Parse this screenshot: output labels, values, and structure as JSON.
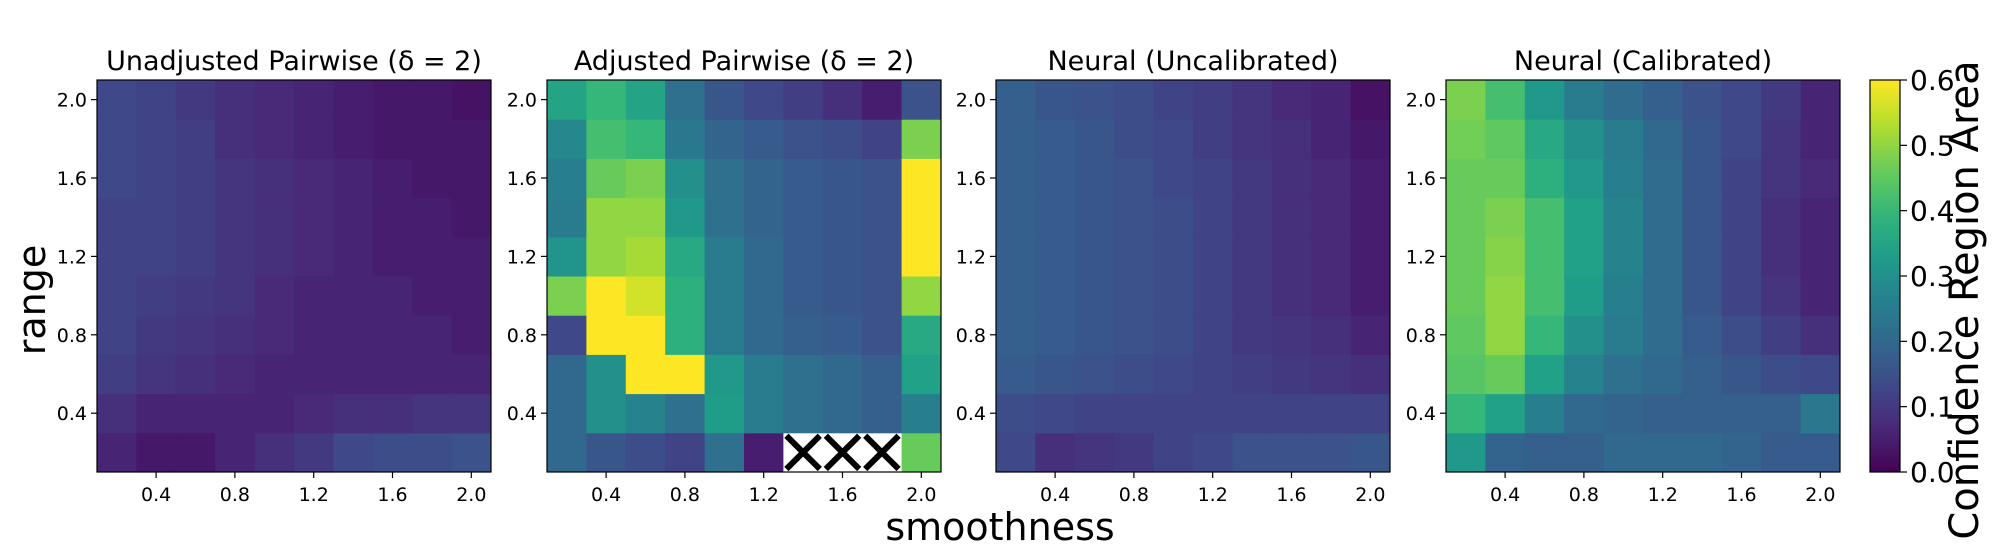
{
  "chart_data": {
    "type": "heatmap",
    "xlabel": "smoothness",
    "ylabel": "range",
    "colormap": "viridis",
    "color_range": [
      0.0,
      0.6
    ],
    "colorbar_label": "Confidence Region Area",
    "colorbar_ticks": [
      "0.0",
      "0.1",
      "0.2",
      "0.3",
      "0.4",
      "0.5",
      "0.6"
    ],
    "x_range": [
      0.1,
      2.1
    ],
    "y_range": [
      0.1,
      2.1
    ],
    "x_ticks": [
      "0.4",
      "0.8",
      "1.2",
      "1.6",
      "2.0"
    ],
    "y_ticks": [
      "0.4",
      "0.8",
      "1.2",
      "1.6",
      "2.0"
    ],
    "grid_x": [
      0.2,
      0.4,
      0.6,
      0.8,
      1.0,
      1.2,
      1.4,
      1.6,
      1.8,
      2.0
    ],
    "grid_y": [
      0.2,
      0.4,
      0.6,
      0.8,
      1.0,
      1.2,
      1.4,
      1.6,
      1.8,
      2.0
    ],
    "missing_marker": "X",
    "panels": [
      {
        "title": "Unadjusted Pairwise (δ = 2)",
        "values": [
          [
            0.06,
            0.04,
            0.04,
            0.06,
            0.08,
            0.1,
            0.13,
            0.14,
            0.14,
            0.15
          ],
          [
            0.08,
            0.06,
            0.06,
            0.06,
            0.06,
            0.07,
            0.08,
            0.08,
            0.09,
            0.09
          ],
          [
            0.11,
            0.09,
            0.08,
            0.07,
            0.06,
            0.06,
            0.06,
            0.06,
            0.06,
            0.06
          ],
          [
            0.12,
            0.1,
            0.09,
            0.08,
            0.07,
            0.06,
            0.06,
            0.06,
            0.06,
            0.05
          ],
          [
            0.12,
            0.11,
            0.1,
            0.09,
            0.07,
            0.06,
            0.06,
            0.06,
            0.05,
            0.05
          ],
          [
            0.12,
            0.12,
            0.11,
            0.09,
            0.08,
            0.07,
            0.06,
            0.05,
            0.05,
            0.05
          ],
          [
            0.12,
            0.12,
            0.11,
            0.09,
            0.08,
            0.07,
            0.06,
            0.05,
            0.05,
            0.04
          ],
          [
            0.13,
            0.12,
            0.11,
            0.09,
            0.08,
            0.07,
            0.06,
            0.05,
            0.04,
            0.04
          ],
          [
            0.13,
            0.12,
            0.11,
            0.08,
            0.07,
            0.06,
            0.05,
            0.04,
            0.04,
            0.04
          ],
          [
            0.13,
            0.12,
            0.1,
            0.08,
            0.07,
            0.06,
            0.05,
            0.04,
            0.04,
            0.03
          ]
        ]
      },
      {
        "title": "Adjusted Pairwise (δ = 2)",
        "values": [
          [
            0.2,
            0.16,
            0.14,
            0.12,
            0.22,
            0.05,
            null,
            null,
            null,
            0.46
          ],
          [
            0.2,
            0.3,
            0.27,
            0.22,
            0.33,
            0.25,
            0.22,
            0.2,
            0.18,
            0.26
          ],
          [
            0.2,
            0.3,
            0.6,
            0.6,
            0.32,
            0.25,
            0.22,
            0.2,
            0.18,
            0.34
          ],
          [
            0.13,
            0.6,
            0.6,
            0.38,
            0.25,
            0.2,
            0.18,
            0.17,
            0.15,
            0.36
          ],
          [
            0.48,
            0.6,
            0.56,
            0.38,
            0.25,
            0.2,
            0.17,
            0.16,
            0.15,
            0.5
          ],
          [
            0.31,
            0.5,
            0.52,
            0.36,
            0.25,
            0.2,
            0.17,
            0.16,
            0.15,
            0.6
          ],
          [
            0.25,
            0.5,
            0.5,
            0.32,
            0.22,
            0.19,
            0.17,
            0.16,
            0.15,
            0.6
          ],
          [
            0.26,
            0.46,
            0.48,
            0.3,
            0.22,
            0.19,
            0.17,
            0.16,
            0.15,
            0.6
          ],
          [
            0.28,
            0.42,
            0.4,
            0.24,
            0.19,
            0.17,
            0.15,
            0.14,
            0.12,
            0.48
          ],
          [
            0.35,
            0.4,
            0.35,
            0.22,
            0.16,
            0.13,
            0.11,
            0.08,
            0.05,
            0.15
          ]
        ]
      },
      {
        "title": "Neural (Uncalibrated)",
        "values": [
          [
            0.13,
            0.08,
            0.09,
            0.1,
            0.12,
            0.13,
            0.15,
            0.15,
            0.15,
            0.16
          ],
          [
            0.14,
            0.13,
            0.12,
            0.12,
            0.12,
            0.12,
            0.12,
            0.12,
            0.12,
            0.12
          ],
          [
            0.17,
            0.16,
            0.15,
            0.14,
            0.13,
            0.12,
            0.11,
            0.1,
            0.09,
            0.08
          ],
          [
            0.18,
            0.17,
            0.16,
            0.15,
            0.14,
            0.12,
            0.1,
            0.09,
            0.08,
            0.06
          ],
          [
            0.18,
            0.17,
            0.16,
            0.15,
            0.14,
            0.12,
            0.1,
            0.08,
            0.07,
            0.05
          ],
          [
            0.18,
            0.17,
            0.16,
            0.15,
            0.14,
            0.12,
            0.1,
            0.08,
            0.07,
            0.05
          ],
          [
            0.18,
            0.17,
            0.16,
            0.15,
            0.14,
            0.12,
            0.1,
            0.08,
            0.07,
            0.05
          ],
          [
            0.18,
            0.17,
            0.16,
            0.15,
            0.13,
            0.12,
            0.1,
            0.08,
            0.07,
            0.05
          ],
          [
            0.18,
            0.17,
            0.16,
            0.14,
            0.13,
            0.11,
            0.09,
            0.08,
            0.06,
            0.04
          ],
          [
            0.18,
            0.16,
            0.15,
            0.14,
            0.12,
            0.11,
            0.09,
            0.07,
            0.06,
            0.03
          ]
        ]
      },
      {
        "title": "Neural (Calibrated)",
        "values": [
          [
            0.32,
            0.19,
            0.18,
            0.18,
            0.2,
            0.2,
            0.2,
            0.19,
            0.17,
            0.17
          ],
          [
            0.4,
            0.34,
            0.26,
            0.2,
            0.19,
            0.18,
            0.18,
            0.18,
            0.18,
            0.24
          ],
          [
            0.44,
            0.46,
            0.34,
            0.27,
            0.22,
            0.2,
            0.18,
            0.16,
            0.14,
            0.13
          ],
          [
            0.45,
            0.5,
            0.4,
            0.3,
            0.25,
            0.21,
            0.17,
            0.14,
            0.11,
            0.08
          ],
          [
            0.46,
            0.5,
            0.42,
            0.33,
            0.26,
            0.21,
            0.16,
            0.12,
            0.09,
            0.06
          ],
          [
            0.46,
            0.49,
            0.42,
            0.34,
            0.27,
            0.21,
            0.16,
            0.12,
            0.08,
            0.06
          ],
          [
            0.46,
            0.48,
            0.42,
            0.34,
            0.27,
            0.21,
            0.16,
            0.12,
            0.08,
            0.06
          ],
          [
            0.46,
            0.46,
            0.38,
            0.32,
            0.26,
            0.21,
            0.16,
            0.12,
            0.09,
            0.07
          ],
          [
            0.47,
            0.45,
            0.36,
            0.3,
            0.25,
            0.2,
            0.16,
            0.13,
            0.09,
            0.06
          ],
          [
            0.48,
            0.42,
            0.32,
            0.25,
            0.21,
            0.18,
            0.15,
            0.13,
            0.1,
            0.06
          ]
        ]
      }
    ]
  }
}
